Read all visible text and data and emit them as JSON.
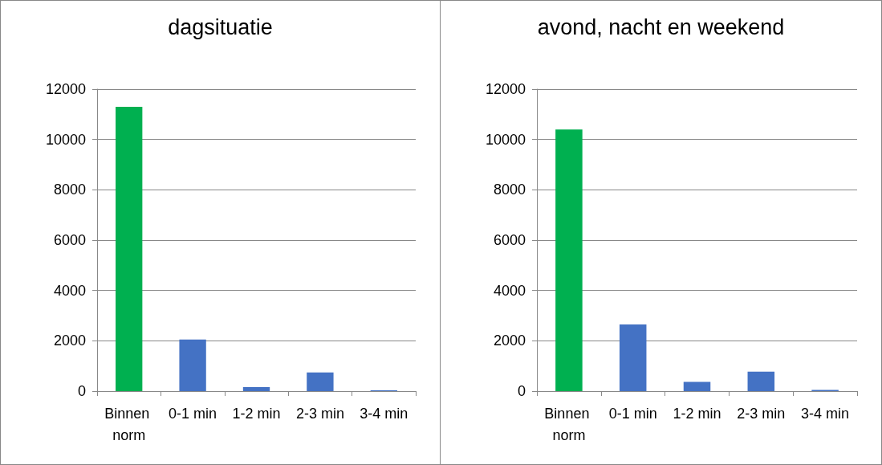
{
  "chart_data": [
    {
      "type": "bar",
      "title": "dagsituatie",
      "categories": [
        "Binnen norm",
        "0-1 min",
        "1-2 min",
        "2-3 min",
        "3-4 min"
      ],
      "values": [
        11300,
        2050,
        160,
        740,
        30
      ],
      "colors": [
        "#00b050",
        "#4472c4",
        "#4472c4",
        "#4472c4",
        "#4472c4"
      ],
      "ylim": [
        0,
        12000
      ],
      "yticks": [
        0,
        2000,
        4000,
        6000,
        8000,
        10000,
        12000
      ],
      "grid": "y"
    },
    {
      "type": "bar",
      "title": "avond, nacht en weekend",
      "categories": [
        "Binnen norm",
        "0-1 min",
        "1-2 min",
        "2-3 min",
        "3-4 min"
      ],
      "values": [
        10400,
        2650,
        370,
        770,
        50
      ],
      "colors": [
        "#00b050",
        "#4472c4",
        "#4472c4",
        "#4472c4",
        "#4472c4"
      ],
      "ylim": [
        0,
        12000
      ],
      "yticks": [
        0,
        2000,
        4000,
        6000,
        8000,
        10000,
        12000
      ],
      "grid": "y"
    }
  ]
}
